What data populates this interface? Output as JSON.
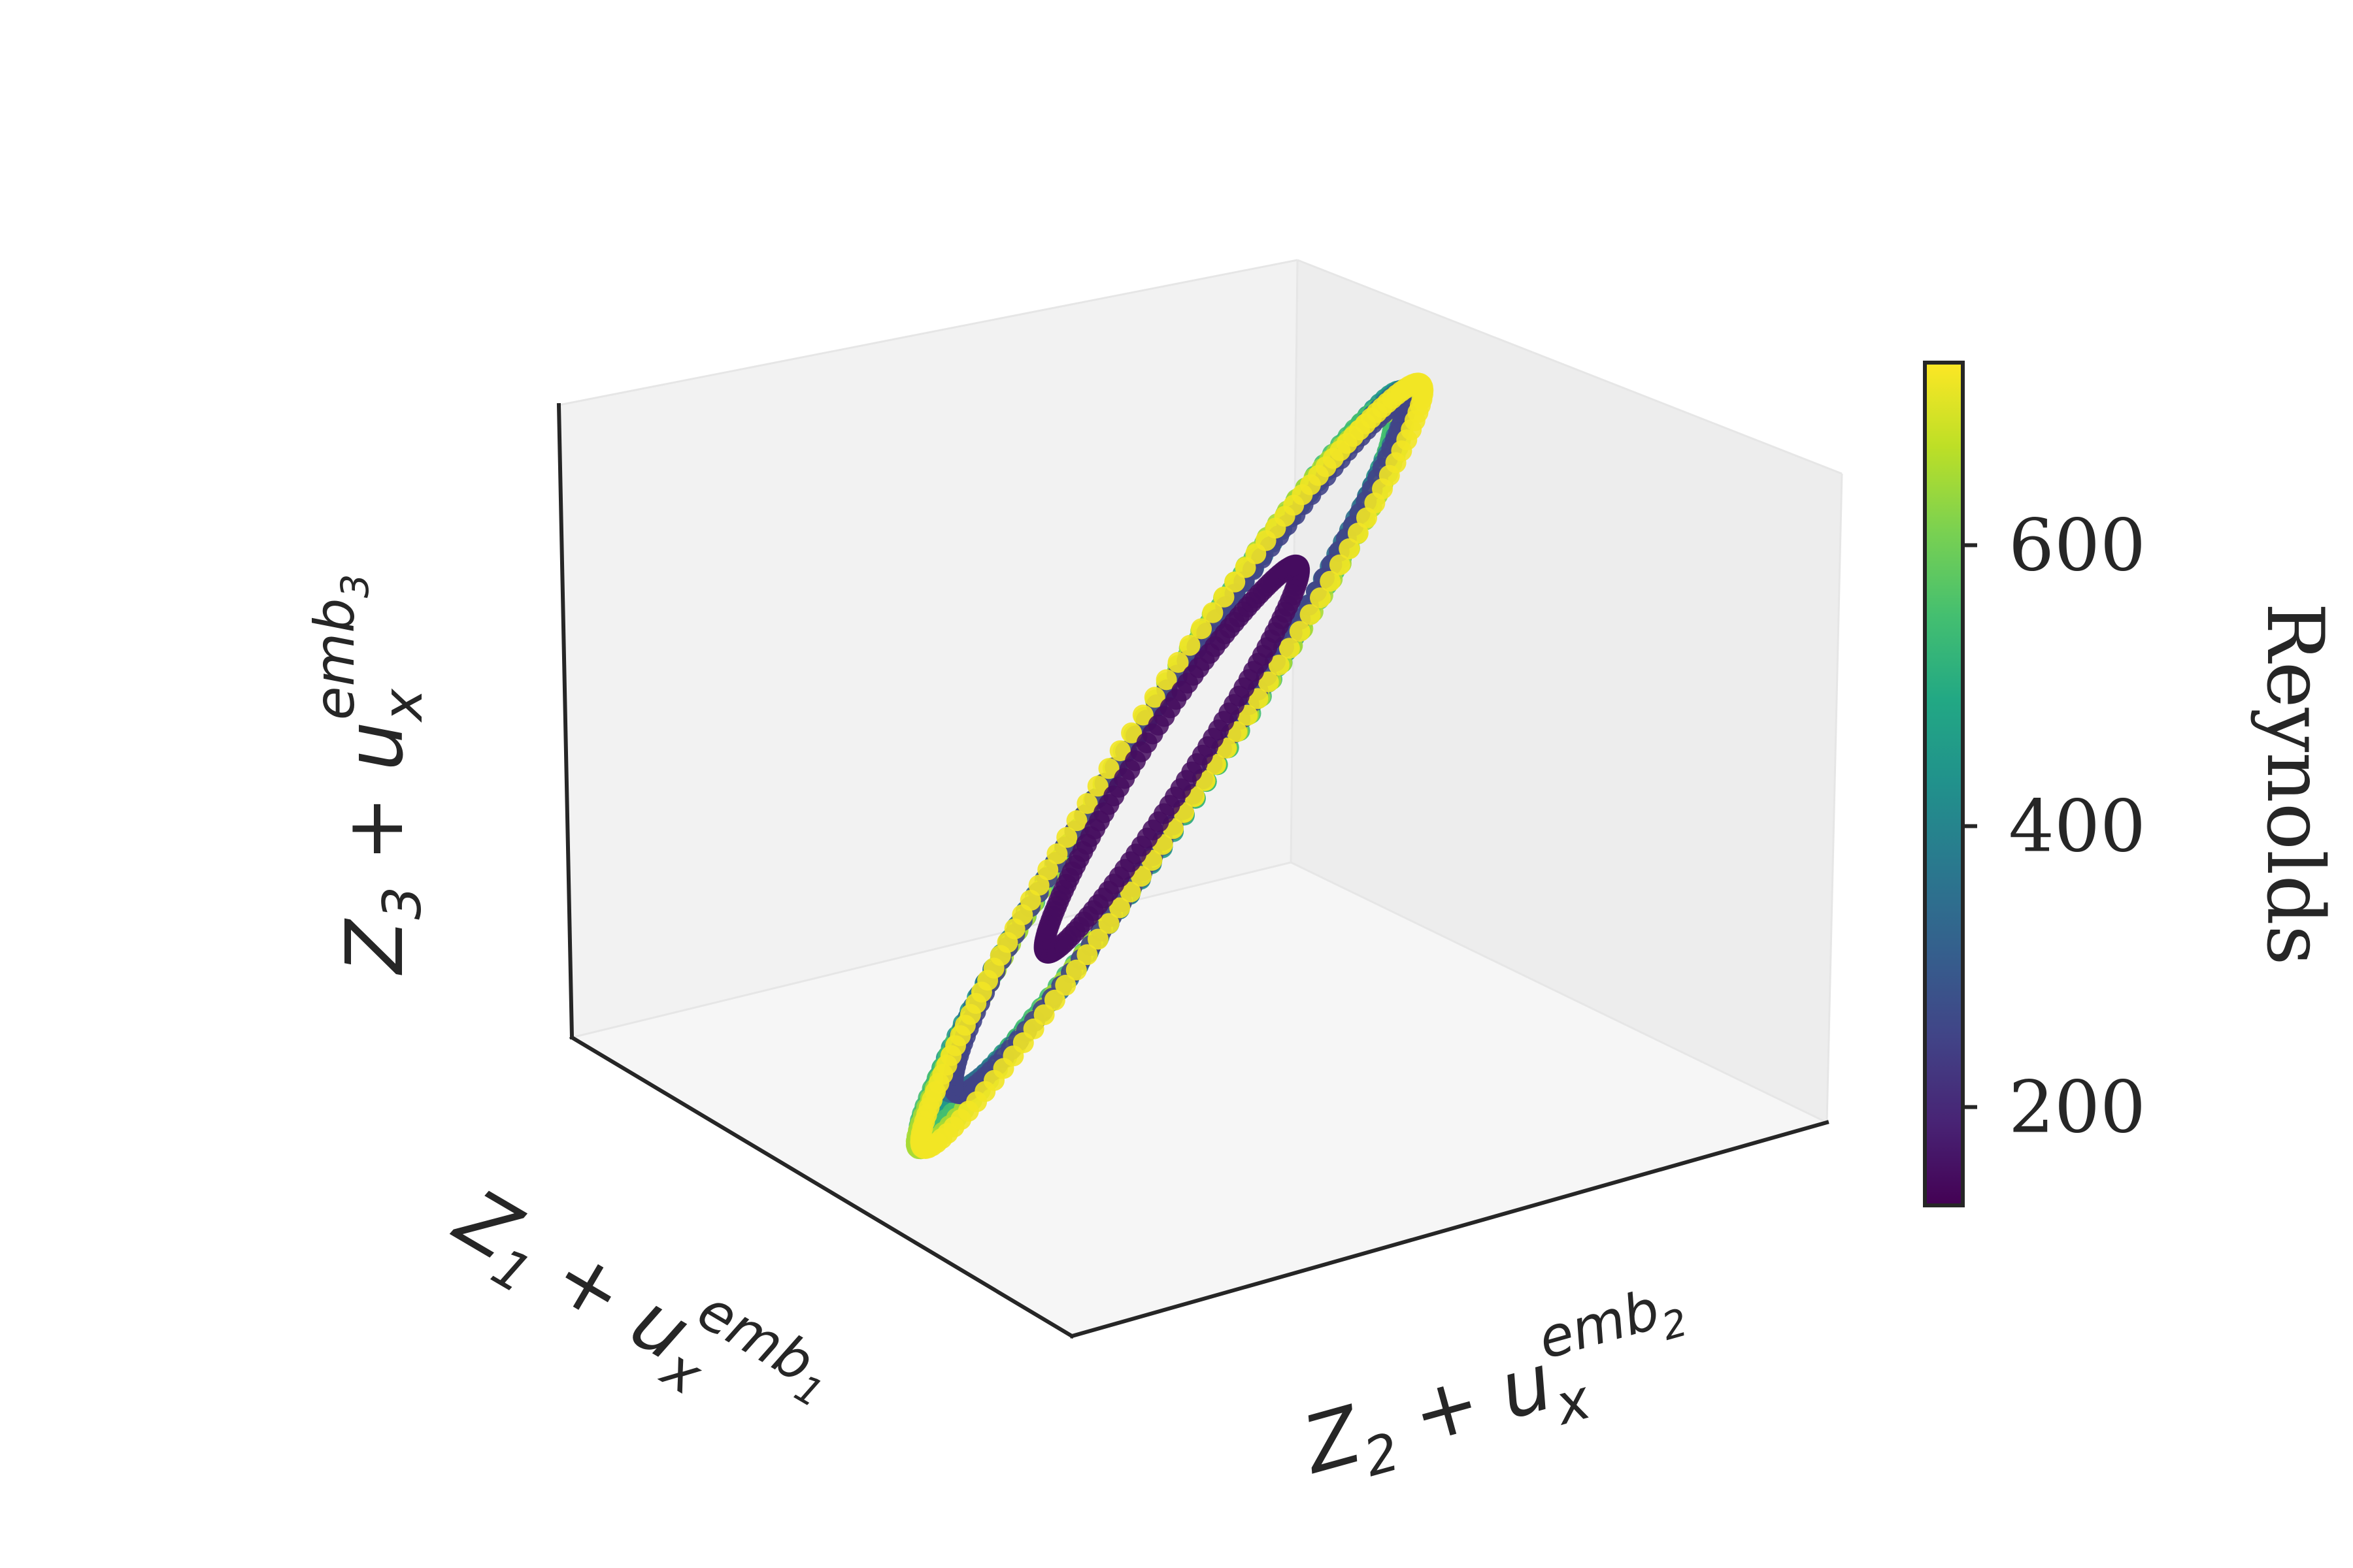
{
  "chart_data": {
    "type": "scatter",
    "projection": "3d",
    "title": "",
    "axes": {
      "x": {
        "label_base": "Z",
        "label_sub": "1",
        "label_op": " + ",
        "label_var": "u",
        "label_var_sub": "x",
        "label_sup": "emb",
        "label_sup_sub": "1",
        "ticks_visible": false
      },
      "y": {
        "label_base": "Z",
        "label_sub": "2",
        "label_op": " + ",
        "label_var": "u",
        "label_var_sub": "x",
        "label_sup": "emb",
        "label_sup_sub": "2",
        "ticks_visible": false
      },
      "z": {
        "label_base": "Z",
        "label_sub": "3",
        "label_op": " + ",
        "label_var": "u",
        "label_var_sub": "x",
        "label_sup": "emb",
        "label_sup_sub": "3",
        "ticks_visible": false
      }
    },
    "pane_colors": {
      "back_left": "#f2f2f2",
      "back_right": "#ededed",
      "floor": "#f6f6f6"
    },
    "grid": false,
    "colorbar": {
      "label": "Reynolds",
      "colormap": "viridis",
      "range": [
        130,
        730
      ],
      "ticks": [
        200,
        400,
        600
      ],
      "tick_labels": [
        "200",
        "400",
        "600"
      ],
      "position": "right"
    },
    "series": [
      {
        "reynolds": 150,
        "ring_radius": 0.55,
        "amplitude": 0.03
      },
      {
        "reynolds": 250,
        "ring_radius": 0.98,
        "amplitude": 0.04
      },
      {
        "reynolds": 350,
        "ring_radius": 1.0,
        "amplitude": 0.05
      },
      {
        "reynolds": 450,
        "ring_radius": 1.02,
        "amplitude": 0.05
      },
      {
        "reynolds": 550,
        "ring_radius": 1.03,
        "amplitude": 0.06
      },
      {
        "reynolds": 650,
        "ring_radius": 1.05,
        "amplitude": 0.06
      },
      {
        "reynolds": 720,
        "ring_radius": 1.08,
        "amplitude": 0.05
      }
    ]
  }
}
